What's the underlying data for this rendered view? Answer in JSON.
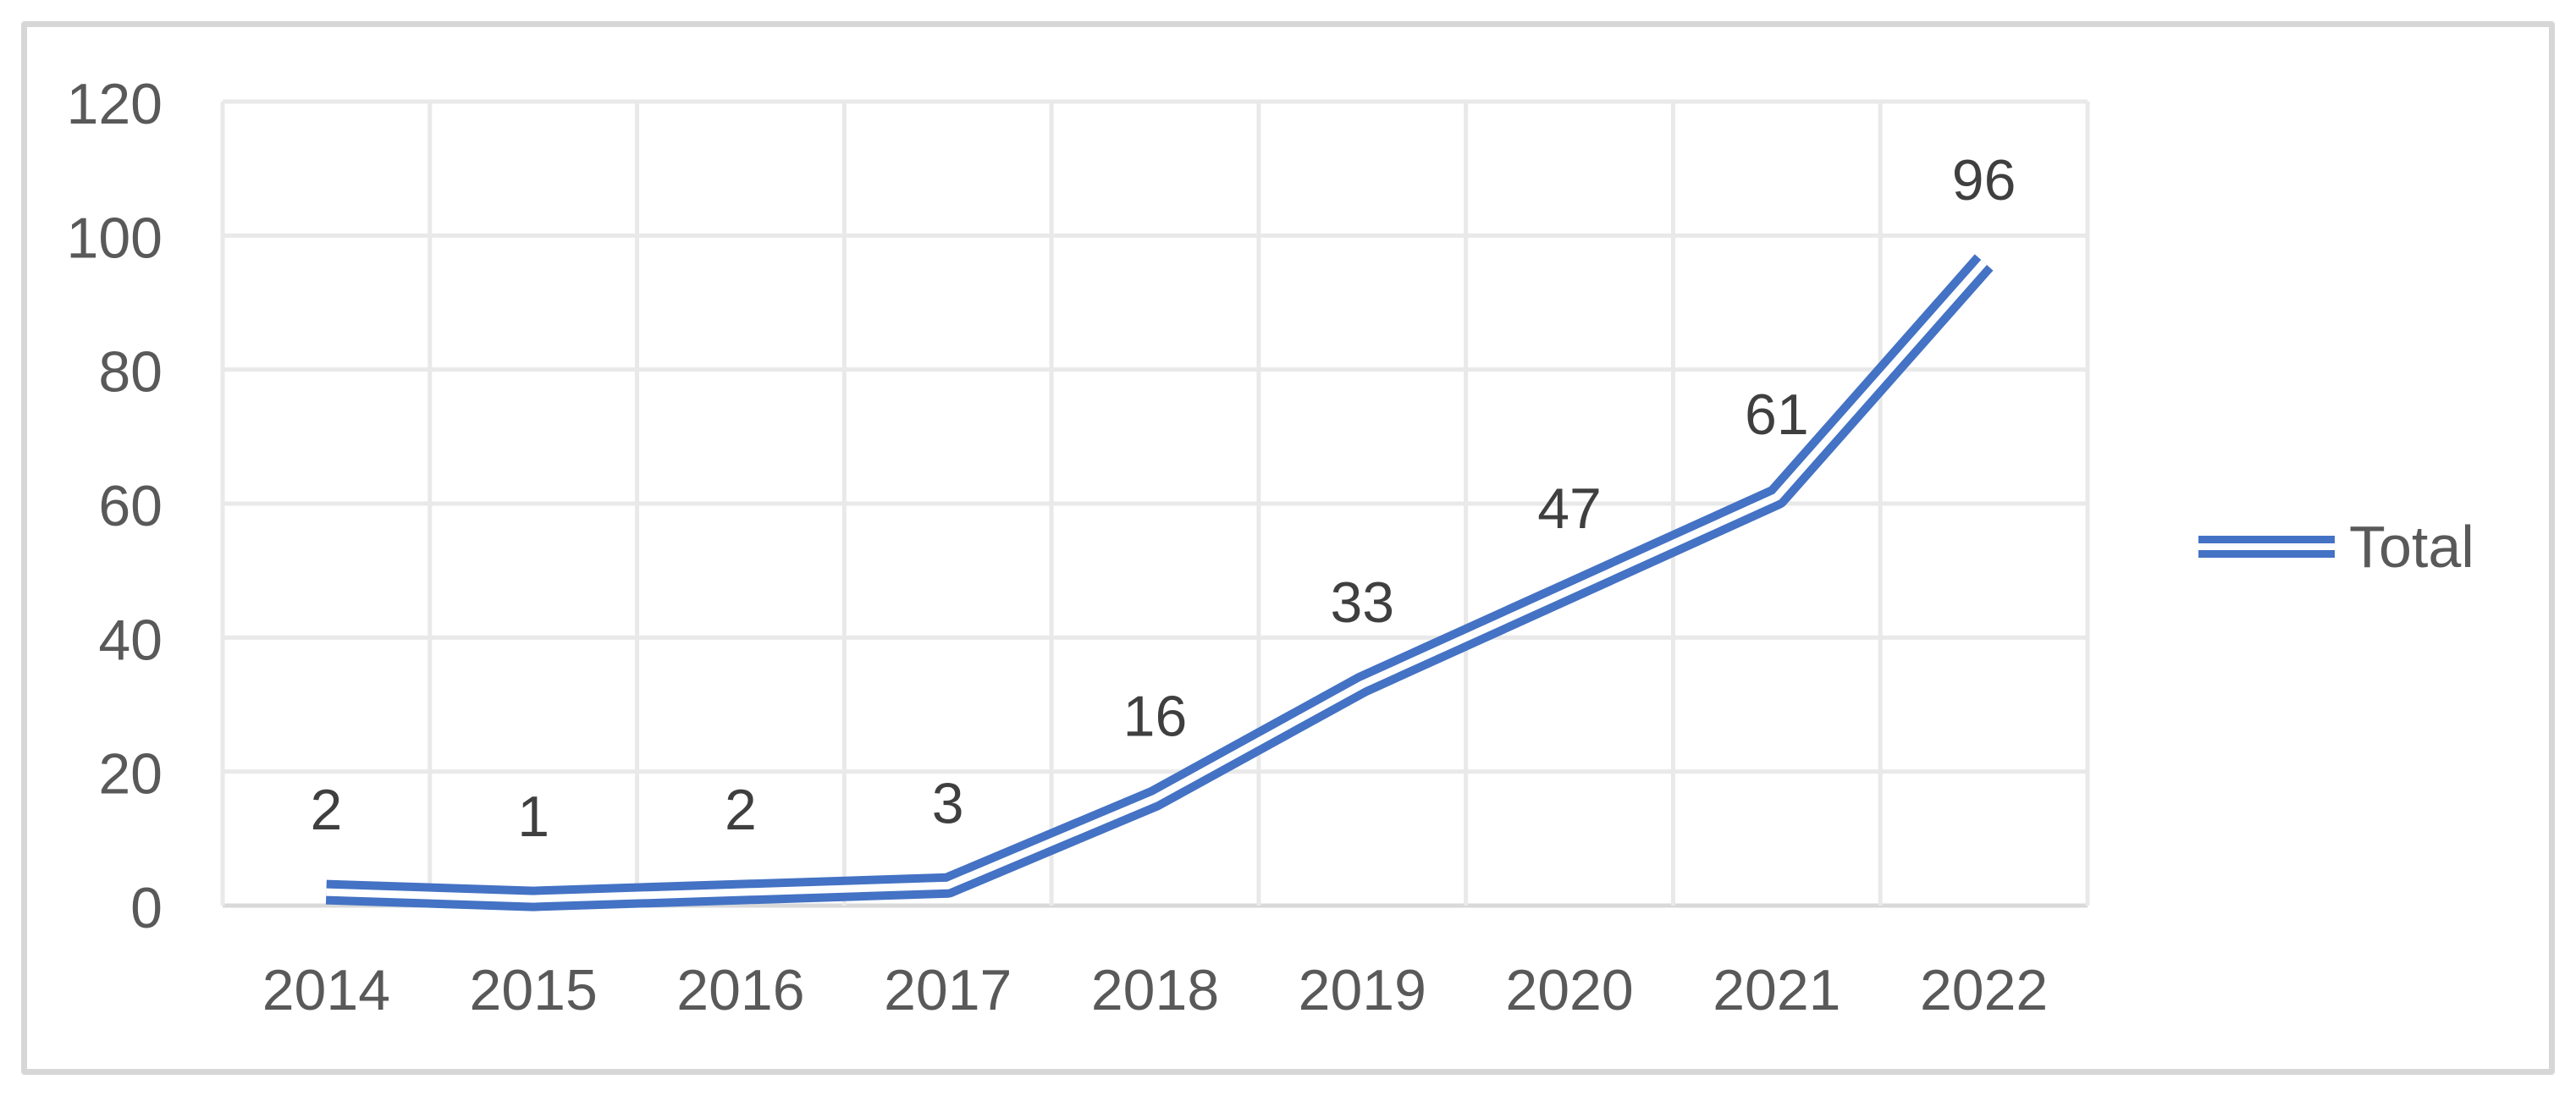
{
  "chart_data": {
    "type": "line",
    "title": "",
    "categories": [
      "2014",
      "2015",
      "2016",
      "2017",
      "2018",
      "2019",
      "2020",
      "2021",
      "2022"
    ],
    "series": [
      {
        "name": "Total",
        "values": [
          2,
          1,
          2,
          3,
          16,
          33,
          47,
          61,
          96
        ]
      }
    ],
    "show_data_labels": true,
    "data_labels": [
      "2",
      "1",
      "2",
      "3",
      "16",
      "33",
      "47",
      "61",
      "96"
    ],
    "xlabel": "",
    "ylabel": "",
    "ylim": [
      0,
      120
    ],
    "ytick_step": 20,
    "ytick_labels": [
      "0",
      "20",
      "40",
      "60",
      "80",
      "100",
      "120"
    ],
    "grid": true,
    "line_style": "double",
    "legend": {
      "position": "right",
      "entries": [
        "Total"
      ]
    },
    "colors": {
      "series_line": "#4472C4",
      "line_inner_stripe": "#FFFFFF",
      "axis_tick_text": "#595959",
      "data_label_text": "#3F3F3F",
      "legend_text": "#595959",
      "gridline": "#E9E9E9",
      "axis_line": "#D9D9D9",
      "frame_border": "#D7D7D7",
      "background": "#FFFFFF"
    }
  }
}
